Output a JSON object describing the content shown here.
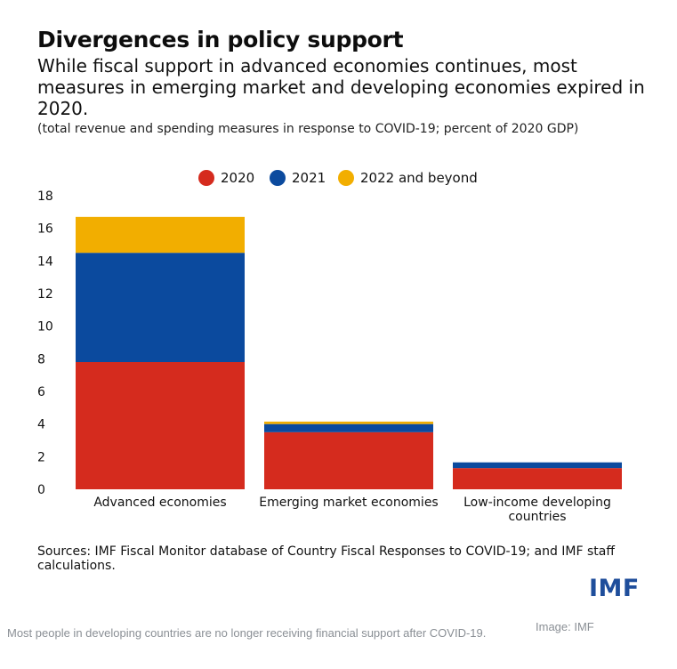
{
  "figure": {
    "sources": "Sources: IMF Fiscal Monitor database of Country Fiscal Responses to COVID-19; and IMF staff calculations.",
    "logo_text": "IMF"
  },
  "page": {
    "caption": "Most people in developing countries are no longer receiving financial support after COVID-19.",
    "image_credit": "Image: IMF"
  },
  "chart_data": {
    "type": "bar",
    "stacked": true,
    "title": "Divergences in policy support",
    "subtitle": "While fiscal support in advanced economies continues, most measures in emerging market and developing economies expired in 2020.",
    "unit_note": "(total revenue and spending measures in response to COVID-19; percent of 2020 GDP)",
    "categories": [
      "Advanced economies",
      "Emerging market economies",
      "Low-income developing countries"
    ],
    "category_lines": [
      [
        "Advanced economies"
      ],
      [
        "Emerging market economies"
      ],
      [
        "Low-income developing",
        "countries"
      ]
    ],
    "series": [
      {
        "name": "2020",
        "color": "#d52b1e",
        "values": [
          7.8,
          3.5,
          1.3
        ]
      },
      {
        "name": "2021",
        "color": "#0b4a9e",
        "values": [
          6.7,
          0.5,
          0.35
        ]
      },
      {
        "name": "2022 and beyond",
        "color": "#f2ae00",
        "values": [
          2.2,
          0.15,
          0.0
        ]
      }
    ],
    "yticks": [
      0,
      2,
      4,
      6,
      8,
      10,
      12,
      14,
      16,
      18
    ],
    "ylim": [
      0,
      18
    ],
    "xlabel": "",
    "ylabel": "",
    "grid": false,
    "legend_position": "top-center"
  }
}
